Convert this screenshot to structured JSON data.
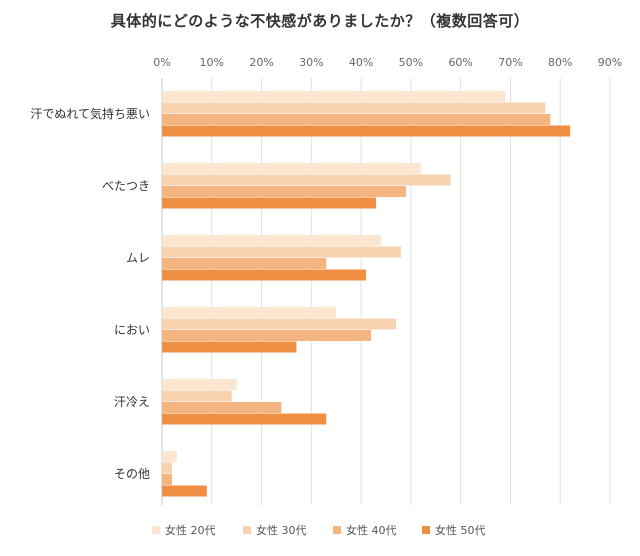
{
  "chart_data": {
    "type": "bar",
    "orientation": "horizontal",
    "title": "具体的にどのような不快感がありましたか？（複数回答可）",
    "categories": [
      "汗でぬれて気持ち悪い",
      "べたつき",
      "ムレ",
      "におい",
      "汗冷え",
      "その他"
    ],
    "series": [
      {
        "name": "女性 20代",
        "color": "#fbe6d2",
        "values": [
          69,
          52,
          44,
          35,
          15,
          3
        ]
      },
      {
        "name": "女性 30代",
        "color": "#f9d3b0",
        "values": [
          77,
          58,
          48,
          47,
          14,
          2
        ]
      },
      {
        "name": "女性 40代",
        "color": "#f5b581",
        "values": [
          78,
          49,
          33,
          42,
          24,
          2
        ]
      },
      {
        "name": "女性 50代",
        "color": "#ef8f43",
        "values": [
          82,
          43,
          41,
          27,
          33,
          9
        ]
      }
    ],
    "xlim": [
      0,
      90
    ],
    "xticks": [
      "0%",
      "10%",
      "20%",
      "30%",
      "40%",
      "50%",
      "60%",
      "70%",
      "80%",
      "90%"
    ],
    "grid": true,
    "legend_position": "bottom"
  }
}
